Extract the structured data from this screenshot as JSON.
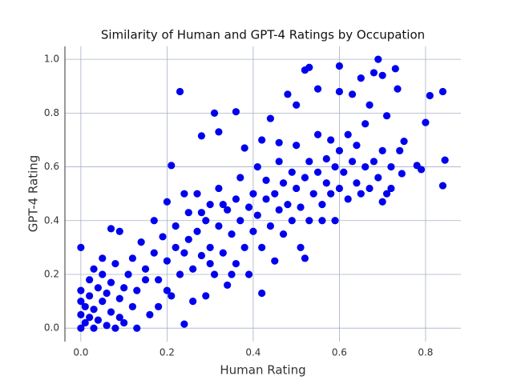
{
  "chart_data": {
    "type": "scatter",
    "title": "Similarity of Human and GPT-4 Ratings by Occupation",
    "x_label": "Human Rating",
    "y_label": "GPT-4 Rating",
    "color": "#0000ee",
    "grid": true,
    "xlim": [
      -0.037,
      0.882
    ],
    "ylim": [
      -0.05,
      1.048
    ],
    "xticks": [
      {
        "value": 0,
        "label": "0.0"
      },
      0.2,
      0.4,
      0.6,
      0.8
    ],
    "yticks": [
      {
        "value": 0,
        "label": "0.0"
      },
      0.2,
      0.4,
      0.6,
      0.8,
      {
        "value": 1,
        "label": "1.0"
      }
    ],
    "x": [
      0,
      0.23,
      0.24,
      0.31,
      0.36,
      0.69,
      0.52,
      0.53,
      0.6,
      0.84,
      0.84,
      0.845,
      0.81,
      0.8,
      0.42,
      0.52,
      0.21,
      0.28,
      0.32,
      0.38,
      0.63,
      0.65,
      0.68,
      0.7,
      0.73,
      0.735,
      0.67,
      0.71,
      0.55,
      0.5,
      0.48,
      0.78,
      0.79,
      0.75,
      0.74,
      0.745,
      0.72,
      0.7,
      0.6,
      0,
      0,
      0,
      0,
      0.01,
      0.01,
      0.02,
      0.02,
      0.02,
      0.03,
      0.03,
      0.04,
      0.04,
      0.05,
      0.05,
      0.06,
      0.06,
      0.07,
      0.07,
      0.08,
      0.08,
      0.09,
      0.09,
      0.1,
      0.1,
      0.11,
      0.12,
      0.12,
      0.13,
      0.13,
      0.07,
      0.09,
      0.05,
      0.03,
      0.14,
      0.15,
      0.16,
      0.17,
      0.17,
      0.18,
      0.19,
      0.2,
      0.2,
      0.21,
      0.22,
      0.22,
      0.23,
      0.24,
      0.25,
      0.25,
      0.26,
      0.27,
      0.27,
      0.28,
      0.29,
      0.29,
      0.3,
      0.3,
      0.31,
      0.32,
      0.32,
      0.33,
      0.34,
      0.34,
      0.35,
      0.36,
      0.36,
      0.37,
      0.37,
      0.38,
      0.39,
      0.39,
      0.4,
      0.4,
      0.41,
      0.41,
      0.42,
      0.43,
      0.43,
      0.44,
      0.45,
      0.45,
      0.46,
      0.46,
      0.47,
      0.47,
      0.48,
      0.49,
      0.49,
      0.5,
      0.5,
      0.51,
      0.51,
      0.52,
      0.53,
      0.53,
      0.54,
      0.55,
      0.55,
      0.56,
      0.57,
      0.57,
      0.58,
      0.58,
      0.59,
      0.6,
      0.6,
      0.61,
      0.62,
      0.62,
      0.63,
      0.64,
      0.64,
      0.65,
      0.66,
      0.66,
      0.67,
      0.68,
      0.69,
      0.7,
      0.71,
      0.72,
      0.56,
      0.59,
      0.44,
      0.42,
      0.46,
      0.35,
      0.2,
      0.15,
      0.18,
      0.26,
      0.3,
      0.33,
      0.24,
      0.28
    ],
    "values": [
      0.3,
      0.88,
      0.015,
      0.8,
      0.805,
      1,
      0.96,
      0.97,
      0.975,
      0.88,
      0.53,
      0.625,
      0.865,
      0.765,
      0.13,
      0.26,
      0.605,
      0.715,
      0.73,
      0.67,
      0.87,
      0.93,
      0.95,
      0.94,
      0.965,
      0.89,
      0.83,
      0.79,
      0.89,
      0.83,
      0.87,
      0.605,
      0.59,
      0.695,
      0.66,
      0.575,
      0.52,
      0.47,
      0.88,
      0,
      0.05,
      0.1,
      0.14,
      0.02,
      0.08,
      0.04,
      0.12,
      0.18,
      0,
      0.07,
      0.15,
      0.03,
      0.1,
      0.2,
      0.01,
      0.13,
      0.06,
      0.17,
      0,
      0.24,
      0.11,
      0.04,
      0.15,
      0.02,
      0.2,
      0.08,
      0.26,
      0.14,
      0,
      0.37,
      0.36,
      0.26,
      0.22,
      0.32,
      0.22,
      0.05,
      0.28,
      0.4,
      0.18,
      0.34,
      0.25,
      0.47,
      0.12,
      0.3,
      0.38,
      0.2,
      0.28,
      0.43,
      0.33,
      0.22,
      0.5,
      0.36,
      0.27,
      0.4,
      0.12,
      0.46,
      0.3,
      0.2,
      0.38,
      0.52,
      0.28,
      0.44,
      0.16,
      0.35,
      0.48,
      0.24,
      0.4,
      0.56,
      0.3,
      0.45,
      0.2,
      0.5,
      0.36,
      0.42,
      0.6,
      0.3,
      0.48,
      0.55,
      0.38,
      0.5,
      0.25,
      0.44,
      0.62,
      0.54,
      0.35,
      0.46,
      0.58,
      0.4,
      0.52,
      0.68,
      0.45,
      0.3,
      0.56,
      0.62,
      0.4,
      0.5,
      0.58,
      0.72,
      0.46,
      0.63,
      0.54,
      0.5,
      0.7,
      0.6,
      0.52,
      0.66,
      0.58,
      0.48,
      0.72,
      0.62,
      0.54,
      0.68,
      0.5,
      0.6,
      0.76,
      0.52,
      0.62,
      0.56,
      0.66,
      0.5,
      0.6,
      0.4,
      0.4,
      0.78,
      0.7,
      0.69,
      0.2,
      0.14,
      0.18,
      0.08,
      0.1,
      0.24,
      0.46,
      0.5,
      0.43
    ]
  }
}
